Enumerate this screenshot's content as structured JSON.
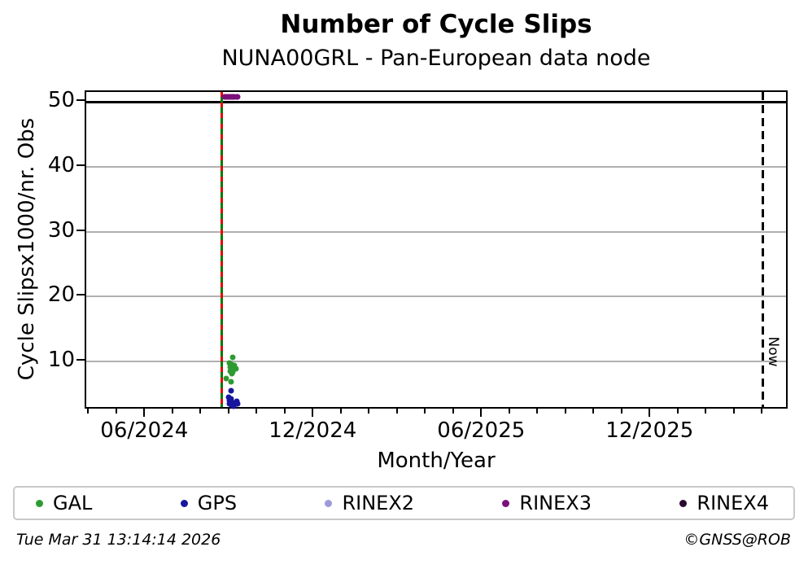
{
  "header": {
    "title": "Number of Cycle Slips",
    "subtitle": "NUNA00GRL - Pan-European data node"
  },
  "footer": {
    "timestamp": "Tue Mar 31 13:14:14 2026",
    "credit": "©GNSS@ROB"
  },
  "chart_data": {
    "type": "scatter",
    "title": "Number of Cycle Slips",
    "subtitle": "NUNA00GRL - Pan-European data node",
    "xlabel": "Month/Year",
    "ylabel": "Cycle Slipsx1000/nr. Obs",
    "grid": true,
    "legend_position": "bottom",
    "xlim": [
      "2024-03-28",
      "2026-04-29"
    ],
    "ylim": [
      2.4,
      51.5
    ],
    "yticks": [
      10,
      20,
      30,
      40,
      50
    ],
    "xticks": [
      {
        "label": "06/2024",
        "date": "2024-06-01"
      },
      {
        "label": "12/2024",
        "date": "2024-12-01"
      },
      {
        "label": "06/2025",
        "date": "2025-06-01"
      },
      {
        "label": "12/2025",
        "date": "2025-12-01"
      }
    ],
    "minor_xticks": "monthly",
    "reference_lines": [
      {
        "name": "event-line",
        "axis": "x",
        "date": "2024-08-22",
        "style": "red-dashed-over-green-solid",
        "colors": [
          "#e60000",
          "#007b00"
        ]
      },
      {
        "name": "now-line",
        "axis": "x",
        "date": "2026-03-31",
        "style": "black-dashed",
        "color": "#000000",
        "label": "Now"
      },
      {
        "name": "max-line",
        "axis": "y",
        "value": 50,
        "style": "black-solid",
        "color": "#000000"
      }
    ],
    "series": [
      {
        "name": "GAL",
        "color": "#2e9b32",
        "points": [
          {
            "x": "2024-09-04",
            "y": 10.6
          },
          {
            "x": "2024-08-31",
            "y": 9.7
          },
          {
            "x": "2024-09-03",
            "y": 9.5
          },
          {
            "x": "2024-09-06",
            "y": 9.4
          },
          {
            "x": "2024-09-01",
            "y": 9.1
          },
          {
            "x": "2024-09-04",
            "y": 8.9
          },
          {
            "x": "2024-09-07",
            "y": 8.9
          },
          {
            "x": "2024-09-01",
            "y": 8.5
          },
          {
            "x": "2024-09-04",
            "y": 8.4
          },
          {
            "x": "2024-09-03",
            "y": 8.1
          },
          {
            "x": "2024-08-27",
            "y": 7.4
          },
          {
            "x": "2024-09-02",
            "y": 6.9
          }
        ]
      },
      {
        "name": "GPS",
        "color": "#17179e",
        "points": [
          {
            "x": "2024-09-02",
            "y": 5.4
          },
          {
            "x": "2024-08-30",
            "y": 4.5
          },
          {
            "x": "2024-09-02",
            "y": 4.2
          },
          {
            "x": "2024-08-31",
            "y": 3.9
          },
          {
            "x": "2024-09-03",
            "y": 3.7
          },
          {
            "x": "2024-08-31",
            "y": 3.4
          },
          {
            "x": "2024-09-03",
            "y": 3.2
          },
          {
            "x": "2024-09-06",
            "y": 3.3
          },
          {
            "x": "2024-09-08",
            "y": 3.8
          },
          {
            "x": "2024-09-09",
            "y": 3.4
          },
          {
            "x": "2024-09-05",
            "y": 3.1
          }
        ]
      },
      {
        "name": "RINEX2",
        "color": "#9d99dc",
        "points": []
      },
      {
        "name": "RINEX3",
        "color": "#7c107a",
        "points": [
          {
            "x": "2024-08-25",
            "y": 50.8
          },
          {
            "x": "2024-08-26",
            "y": 50.8
          },
          {
            "x": "2024-08-28",
            "y": 50.8
          },
          {
            "x": "2024-08-29",
            "y": 50.8
          },
          {
            "x": "2024-08-31",
            "y": 50.8
          },
          {
            "x": "2024-09-01",
            "y": 50.8
          },
          {
            "x": "2024-09-02",
            "y": 50.8
          },
          {
            "x": "2024-09-03",
            "y": 50.8
          },
          {
            "x": "2024-09-04",
            "y": 50.8
          },
          {
            "x": "2024-09-05",
            "y": 50.8
          },
          {
            "x": "2024-09-06",
            "y": 50.8
          },
          {
            "x": "2024-09-08",
            "y": 50.8
          },
          {
            "x": "2024-09-09",
            "y": 50.8
          }
        ]
      },
      {
        "name": "RINEX4",
        "color": "#2a0b30",
        "points": []
      }
    ]
  }
}
